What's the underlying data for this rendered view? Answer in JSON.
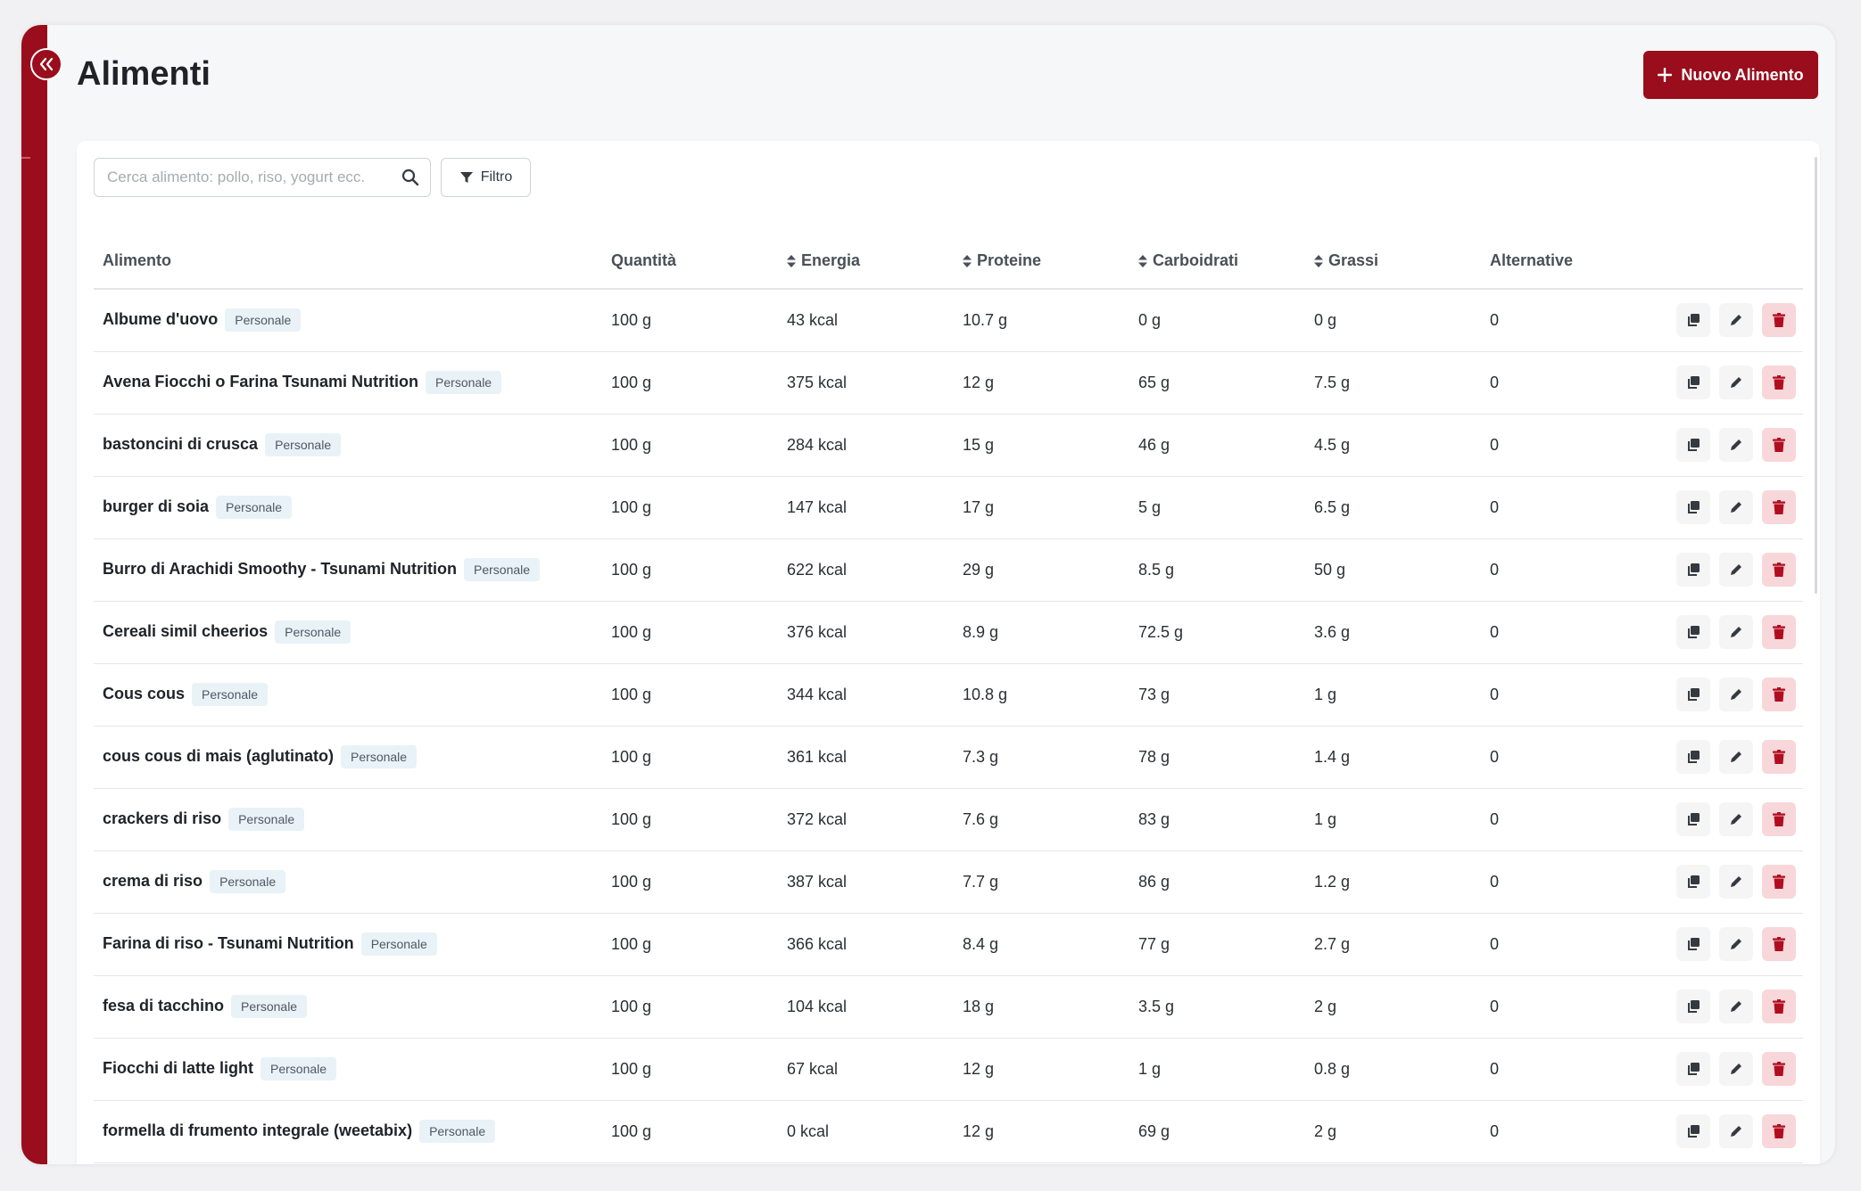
{
  "header": {
    "title": "Alimenti",
    "new_button_label": "Nuovo Alimento"
  },
  "search": {
    "placeholder": "Cerca alimento: pollo, riso, yogurt ecc.",
    "filter_label": "Filtro"
  },
  "table": {
    "columns": [
      "Alimento",
      "Quantità",
      "Energia",
      "Proteine",
      "Carboidrati",
      "Grassi",
      "Alternative"
    ],
    "sortable_columns": [
      "Energia",
      "Proteine",
      "Carboidrati",
      "Grassi"
    ],
    "rows": [
      {
        "name": "Albume d'uovo",
        "badge": "Personale",
        "quantity": "100 g",
        "energy": "43 kcal",
        "protein": "10.7 g",
        "carbs": "0 g",
        "fat": "0 g",
        "alternatives": "0"
      },
      {
        "name": "Avena Fiocchi o Farina Tsunami Nutrition",
        "badge": "Personale",
        "quantity": "100 g",
        "energy": "375 kcal",
        "protein": "12 g",
        "carbs": "65 g",
        "fat": "7.5 g",
        "alternatives": "0"
      },
      {
        "name": "bastoncini di crusca",
        "badge": "Personale",
        "quantity": "100 g",
        "energy": "284 kcal",
        "protein": "15 g",
        "carbs": "46 g",
        "fat": "4.5 g",
        "alternatives": "0"
      },
      {
        "name": "burger di soia",
        "badge": "Personale",
        "quantity": "100 g",
        "energy": "147 kcal",
        "protein": "17 g",
        "carbs": "5 g",
        "fat": "6.5 g",
        "alternatives": "0"
      },
      {
        "name": "Burro di Arachidi Smoothy - Tsunami Nutrition",
        "badge": "Personale",
        "quantity": "100 g",
        "energy": "622 kcal",
        "protein": "29 g",
        "carbs": "8.5 g",
        "fat": "50 g",
        "alternatives": "0"
      },
      {
        "name": "Cereali simil cheerios",
        "badge": "Personale",
        "quantity": "100 g",
        "energy": "376 kcal",
        "protein": "8.9 g",
        "carbs": "72.5 g",
        "fat": "3.6 g",
        "alternatives": "0"
      },
      {
        "name": "Cous cous",
        "badge": "Personale",
        "quantity": "100 g",
        "energy": "344 kcal",
        "protein": "10.8 g",
        "carbs": "73 g",
        "fat": "1 g",
        "alternatives": "0"
      },
      {
        "name": "cous cous di mais (aglutinato)",
        "badge": "Personale",
        "quantity": "100 g",
        "energy": "361 kcal",
        "protein": "7.3 g",
        "carbs": "78 g",
        "fat": "1.4 g",
        "alternatives": "0"
      },
      {
        "name": "crackers di riso",
        "badge": "Personale",
        "quantity": "100 g",
        "energy": "372 kcal",
        "protein": "7.6 g",
        "carbs": "83 g",
        "fat": "1 g",
        "alternatives": "0"
      },
      {
        "name": "crema di riso",
        "badge": "Personale",
        "quantity": "100 g",
        "energy": "387 kcal",
        "protein": "7.7 g",
        "carbs": "86 g",
        "fat": "1.2 g",
        "alternatives": "0"
      },
      {
        "name": "Farina di riso - Tsunami Nutrition",
        "badge": "Personale",
        "quantity": "100 g",
        "energy": "366 kcal",
        "protein": "8.4 g",
        "carbs": "77 g",
        "fat": "2.7 g",
        "alternatives": "0"
      },
      {
        "name": "fesa di tacchino",
        "badge": "Personale",
        "quantity": "100 g",
        "energy": "104 kcal",
        "protein": "18 g",
        "carbs": "3.5 g",
        "fat": "2 g",
        "alternatives": "0"
      },
      {
        "name": "Fiocchi di latte light",
        "badge": "Personale",
        "quantity": "100 g",
        "energy": "67 kcal",
        "protein": "12 g",
        "carbs": "1 g",
        "fat": "0.8 g",
        "alternatives": "0"
      },
      {
        "name": "formella di frumento integrale (weetabix)",
        "badge": "Personale",
        "quantity": "100 g",
        "energy": "0 kcal",
        "protein": "12 g",
        "carbs": "69 g",
        "fat": "2 g",
        "alternatives": "0"
      }
    ]
  },
  "icons": {
    "sidebar_toggle": "chevrons-left-icon",
    "search": "search-icon",
    "filter": "filter-icon",
    "sort": "sort-icon",
    "duplicate": "copy-icon",
    "edit": "pencil-icon",
    "delete": "trash-icon",
    "plus": "plus-icon"
  },
  "colors": {
    "brand": "#9a0d1c",
    "badge_bg": "#e9f2f7",
    "delete_bg": "#f8d7da"
  }
}
